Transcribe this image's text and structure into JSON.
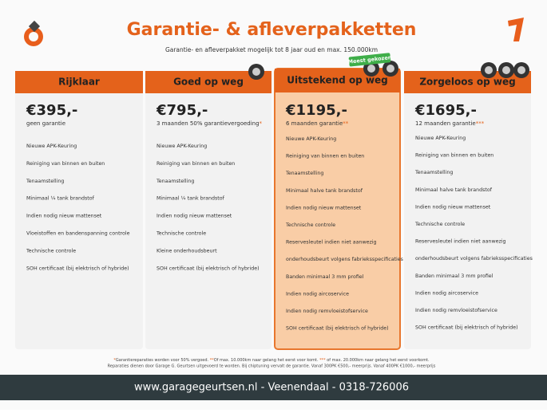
{
  "header": {
    "title": "Garantie- & afleverpakketten",
    "subtitle": "Garantie- en afleverpakket mogelijk tot 8 jaar oud en max. 150.000km"
  },
  "badge": "Meest gekozen",
  "packages": [
    {
      "name": "Rijklaar",
      "price": "€395,-",
      "note": "geen garantie",
      "note_mark": null,
      "features": [
        "Nieuwe APK-Keuring",
        "Reiniging van binnen en buiten",
        "Tenaamstelling",
        "Minimaal ¼  tank brandstof",
        "Indien nodig nieuw mattenset",
        "Vloeistoffen en bandenspanning controle",
        "Technische controle",
        "SOH certificaat (bij elektrisch of hybride)"
      ]
    },
    {
      "name": "Goed op weg",
      "price": "€795,-",
      "note": "3 maanden 50% garantievergoeding",
      "note_mark": "*",
      "features": [
        "Nieuwe APK-Keuring",
        "Reiniging van binnen en buiten",
        "Tenaamstelling",
        "Minimaal ¼ tank brandstof",
        "Indien nodig nieuw mattenset",
        "Technische controle",
        "Kleine onderhoudsbeurt",
        "SOH certificaat (bij elektrisch of hybride)"
      ]
    },
    {
      "name": "Uitstekend op weg",
      "price": "€1195,-",
      "note": "6 maanden garantie",
      "note_mark": "**",
      "features": [
        "Nieuwe APK-Keuring",
        "Reiniging van binnen en buiten",
        "Tenaamstelling",
        "Minimaal halve tank brandstof",
        "Indien nodig nieuw mattenset",
        "Technische controle",
        "Reservesleutel indien niet aanwezig",
        "onderhoudsbeurt volgens fabrieksspecificaties",
        "Banden minimaal 3 mm profiel",
        "Indien nodig aircoservice",
        "Indien nodig remvloeistofservice",
        "SOH certificaat (bij elektrisch of hybride)"
      ]
    },
    {
      "name": "Zorgeloos op weg",
      "price": "€1695,-",
      "note": "12 maanden garantie",
      "note_mark": "***",
      "features": [
        "Nieuwe APK-Keuring",
        "Reiniging van binnen en buiten",
        "Tenaamstelling",
        "Minimaal halve tank brandstof",
        "Indien nodig nieuw mattenset",
        "Technische controle",
        "Reservesleutel indien niet aanwezig",
        "onderhoudsbeurt volgens fabrieksspecificaties",
        "Banden minimaal 3 mm profiel",
        "Indien nodig aircoservice",
        "Indien nodig remvloeistofservice",
        "SOH certificaat (bij elektrisch of hybride)"
      ]
    }
  ],
  "footnotes": {
    "line1": [
      {
        "text": "*",
        "mark": true
      },
      {
        "text": "Garantiereparaties worden voor 50% vergoed. ",
        "mark": false
      },
      {
        "text": "**",
        "mark": true
      },
      {
        "text": "Of max. 10.000km naar gelang het eerst voor komt. ",
        "mark": false
      },
      {
        "text": "***",
        "mark": true
      },
      {
        "text": " of max. 20.000km naar gelang het eerst voorkomt.",
        "mark": false
      }
    ],
    "line2": "Reparaties dienen door Garage G. Geurtsen uitgevoerd te worden. Bij chiptuning vervalt de garantie. Vanaf 300PK €500,- meerprijs. Vanaf 400PK €1000,- meerprijs"
  },
  "footer": "www.garagegeurtsen.nl - Veenendaal - 0318-726006"
}
